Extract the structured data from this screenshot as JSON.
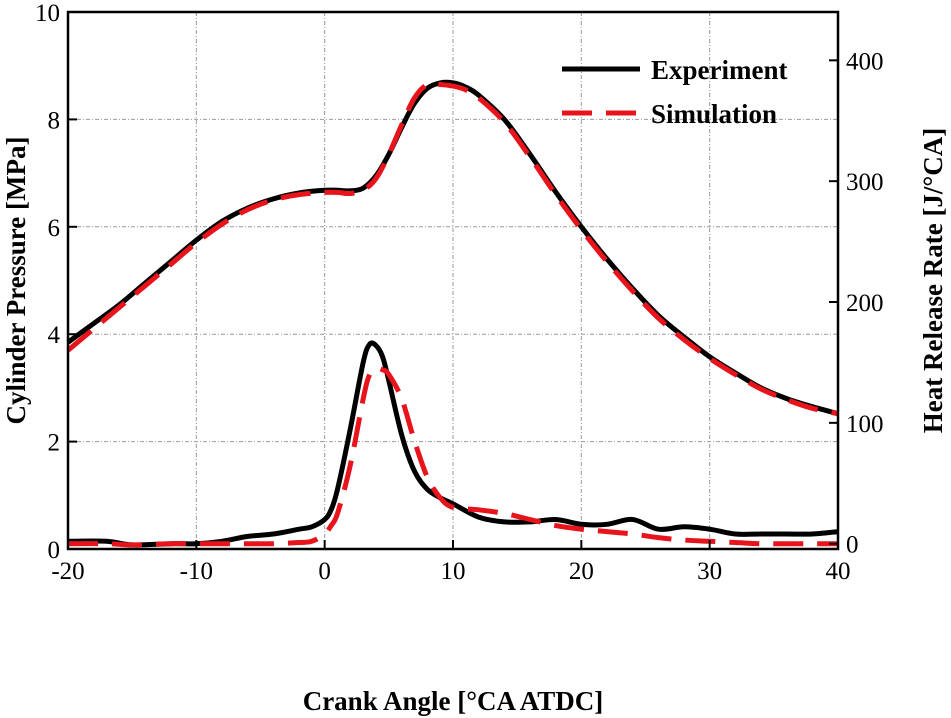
{
  "chart_data": {
    "type": "line",
    "xlabel": "Crank Angle  [°CA ATDC]",
    "ylabel": "Cylinder Pressure [MPa]",
    "y2label": "Heat Release Rate [J/°CA]",
    "xlim": [
      -20,
      40
    ],
    "ylim": [
      0,
      10
    ],
    "y2lim": [
      -4.4,
      440
    ],
    "xticks": [
      -20,
      -10,
      0,
      10,
      20,
      30,
      40
    ],
    "yticks": [
      0,
      2,
      4,
      6,
      8,
      10
    ],
    "y2ticks": [
      0,
      100,
      200,
      300,
      400
    ],
    "grid": true,
    "legend_position": "top-right",
    "series": [
      {
        "name": "Experiment",
        "quantity": "pressure",
        "axis": "left",
        "color": "#000000",
        "dash": "solid",
        "x": [
          -20,
          -18,
          -16,
          -14,
          -12,
          -10,
          -8,
          -6,
          -4,
          -2,
          0,
          1,
          2,
          3,
          4,
          5,
          6,
          7,
          8,
          9,
          10,
          11,
          12,
          14,
          16,
          18,
          20,
          22,
          24,
          26,
          28,
          30,
          32,
          34,
          36,
          38,
          40
        ],
        "y": [
          3.85,
          4.2,
          4.55,
          4.95,
          5.35,
          5.75,
          6.1,
          6.35,
          6.52,
          6.63,
          6.68,
          6.68,
          6.67,
          6.72,
          6.95,
          7.35,
          7.85,
          8.3,
          8.58,
          8.68,
          8.68,
          8.6,
          8.45,
          8.0,
          7.35,
          6.65,
          6.0,
          5.4,
          4.85,
          4.35,
          3.95,
          3.58,
          3.28,
          3.0,
          2.8,
          2.65,
          2.52
        ]
      },
      {
        "name": "Simulation",
        "quantity": "pressure",
        "axis": "left",
        "color": "#e8141c",
        "dash": "dashed",
        "x": [
          -20,
          -18,
          -16,
          -14,
          -12,
          -10,
          -8,
          -6,
          -4,
          -2,
          0,
          1,
          2,
          3,
          4,
          5,
          6,
          7,
          8,
          9,
          10,
          11,
          12,
          14,
          16,
          18,
          20,
          22,
          24,
          26,
          28,
          30,
          32,
          34,
          36,
          38,
          40
        ],
        "y": [
          3.7,
          4.1,
          4.5,
          4.9,
          5.3,
          5.7,
          6.05,
          6.32,
          6.5,
          6.6,
          6.64,
          6.64,
          6.62,
          6.68,
          6.9,
          7.35,
          7.9,
          8.4,
          8.65,
          8.65,
          8.62,
          8.55,
          8.4,
          7.95,
          7.3,
          6.6,
          5.95,
          5.35,
          4.8,
          4.3,
          3.9,
          3.55,
          3.25,
          2.98,
          2.78,
          2.62,
          2.52
        ]
      },
      {
        "name": "Experiment",
        "quantity": "heat release rate",
        "axis": "right",
        "color": "#000000",
        "dash": "solid",
        "x": [
          -20,
          -17,
          -15,
          -12,
          -10,
          -8,
          -6,
          -4,
          -2,
          -1,
          0,
          0.5,
          1,
          2,
          3,
          3.5,
          4,
          4.5,
          5,
          6,
          7,
          8,
          9,
          10,
          12,
          14,
          16,
          18,
          20,
          22,
          24,
          26,
          28,
          30,
          32,
          34,
          36,
          38,
          40
        ],
        "y": [
          2,
          2,
          -1,
          0,
          0,
          2,
          6,
          8,
          12,
          14,
          20,
          28,
          45,
          95,
          150,
          165,
          164,
          155,
          135,
          90,
          60,
          45,
          38,
          33,
          22,
          18,
          18,
          20,
          16,
          16,
          20,
          12,
          14,
          12,
          8,
          8,
          8,
          8,
          10
        ]
      },
      {
        "name": "Simulation",
        "quantity": "heat release rate",
        "axis": "right",
        "color": "#e8141c",
        "dash": "dashed",
        "x": [
          -20,
          -17,
          -15,
          -12,
          -10,
          -8,
          -6,
          -4,
          -2,
          -1,
          0,
          0.5,
          1,
          2,
          3,
          3.5,
          4,
          4.5,
          5,
          6,
          7,
          8,
          9,
          10,
          12,
          14,
          16,
          18,
          20,
          22,
          24,
          26,
          28,
          30,
          32,
          34,
          36,
          38,
          40
        ],
        "y": [
          0,
          0,
          -1,
          0,
          0,
          0,
          0,
          0,
          1,
          2,
          8,
          15,
          25,
          65,
          120,
          140,
          145,
          144,
          140,
          120,
          85,
          55,
          38,
          30,
          28,
          25,
          20,
          15,
          12,
          10,
          8,
          5,
          3,
          2,
          1,
          0,
          0,
          0,
          0
        ]
      }
    ]
  }
}
